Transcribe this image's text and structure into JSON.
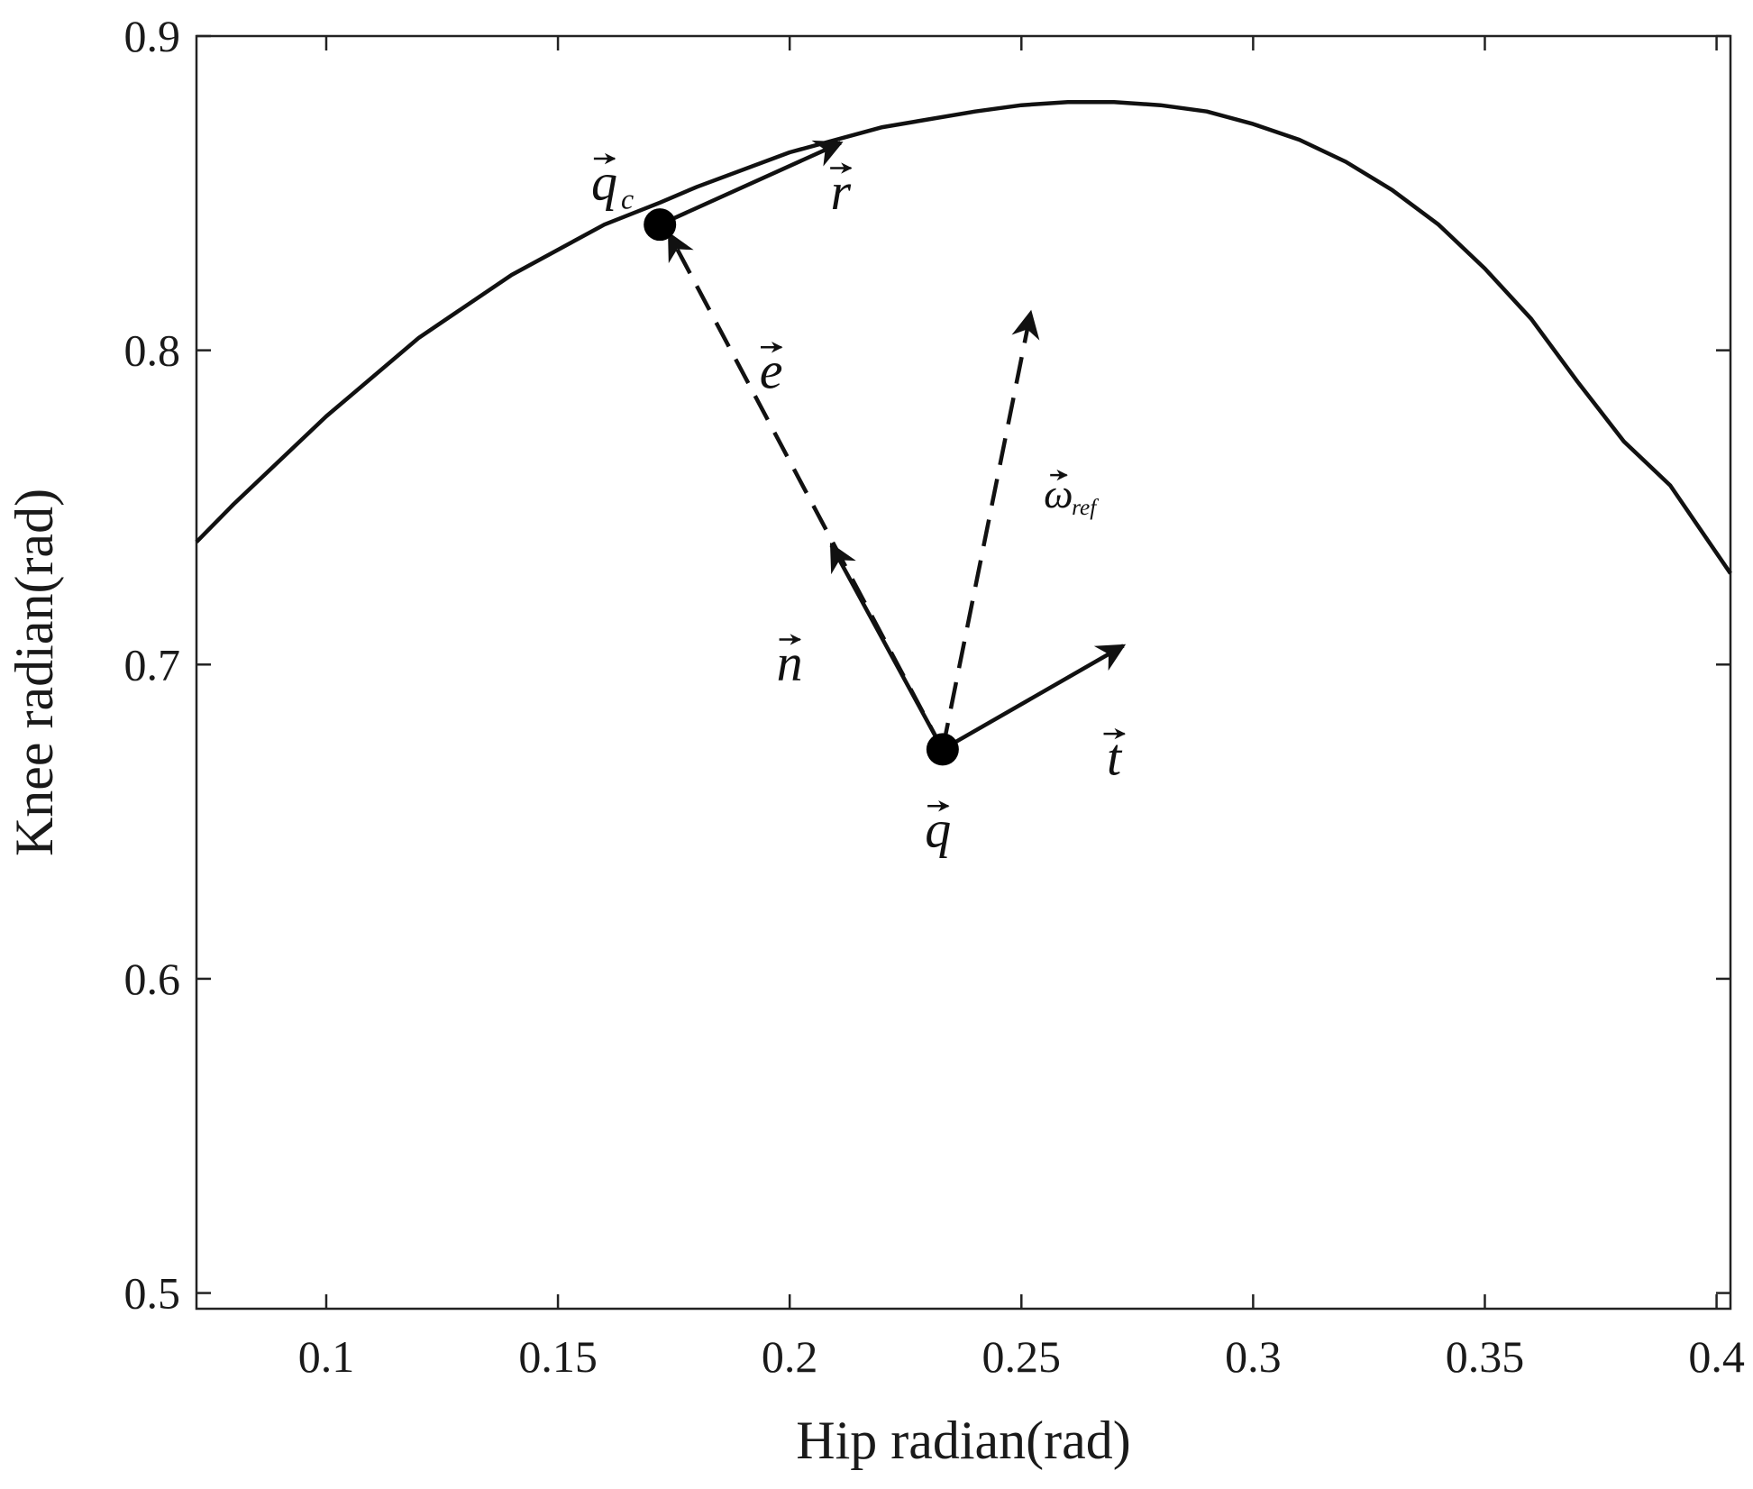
{
  "chart_data": {
    "type": "line",
    "title": "",
    "xlabel": "Hip radian(rad)",
    "ylabel": "Knee radian(rad)",
    "xlim": [
      0.072,
      0.403
    ],
    "ylim": [
      0.495,
      0.9
    ],
    "xticks": [
      0.1,
      0.15,
      0.2,
      0.25,
      0.3,
      0.35,
      0.4
    ],
    "xtick_labels": [
      "0.1",
      "0.15",
      "0.2",
      "0.25",
      "0.3",
      "0.35",
      "0.4"
    ],
    "yticks": [
      0.5,
      0.6,
      0.7,
      0.8,
      0.9
    ],
    "ytick_labels": [
      "0.5",
      "0.6",
      "0.7",
      "0.8",
      "0.9"
    ],
    "grid": false,
    "series": [
      {
        "x": [
          0.072,
          0.08,
          0.1,
          0.12,
          0.14,
          0.16,
          0.172,
          0.18,
          0.2,
          0.22,
          0.24,
          0.25,
          0.26,
          0.27,
          0.28,
          0.29,
          0.3,
          0.31,
          0.32,
          0.33,
          0.34,
          0.35,
          0.36,
          0.37,
          0.38,
          0.39,
          0.403
        ],
        "y": [
          0.739,
          0.751,
          0.779,
          0.804,
          0.824,
          0.84,
          0.847,
          0.852,
          0.863,
          0.871,
          0.876,
          0.878,
          0.879,
          0.879,
          0.878,
          0.876,
          0.872,
          0.867,
          0.86,
          0.851,
          0.84,
          0.826,
          0.81,
          0.79,
          0.771,
          0.757,
          0.729
        ]
      }
    ],
    "points": [
      {
        "label": "q_c",
        "x": 0.172,
        "y": 0.84
      },
      {
        "label": "q",
        "x": 0.233,
        "y": 0.673
      }
    ],
    "vectors": [
      {
        "label": "r",
        "from": [
          0.172,
          0.84
        ],
        "to": [
          0.211,
          0.866
        ],
        "style": "solid"
      },
      {
        "label": "e",
        "from": [
          0.233,
          0.673
        ],
        "to": [
          0.174,
          0.837
        ],
        "style": "dashed"
      },
      {
        "label": "n",
        "from": [
          0.233,
          0.673
        ],
        "to": [
          0.209,
          0.738
        ],
        "style": "solid"
      },
      {
        "label": "ω_ref",
        "from": [
          0.233,
          0.673
        ],
        "to": [
          0.252,
          0.812
        ],
        "style": "dashed"
      },
      {
        "label": "t",
        "from": [
          0.233,
          0.673
        ],
        "to": [
          0.272,
          0.706
        ],
        "style": "solid"
      }
    ],
    "annotations": [
      {
        "text": "q",
        "sub": "c",
        "arrow": true,
        "x": 0.16,
        "y": 0.848
      },
      {
        "text": "r",
        "sub": "",
        "arrow": true,
        "x": 0.211,
        "y": 0.845
      },
      {
        "text": "e",
        "sub": "",
        "arrow": true,
        "x": 0.196,
        "y": 0.788
      },
      {
        "text": "ω",
        "sub": "ref",
        "arrow": true,
        "x": 0.258,
        "y": 0.75
      },
      {
        "text": "n",
        "sub": "",
        "arrow": true,
        "x": 0.2,
        "y": 0.695
      },
      {
        "text": "t",
        "sub": "",
        "arrow": true,
        "x": 0.27,
        "y": 0.665
      },
      {
        "text": "q",
        "sub": "",
        "arrow": true,
        "x": 0.232,
        "y": 0.642
      }
    ]
  }
}
